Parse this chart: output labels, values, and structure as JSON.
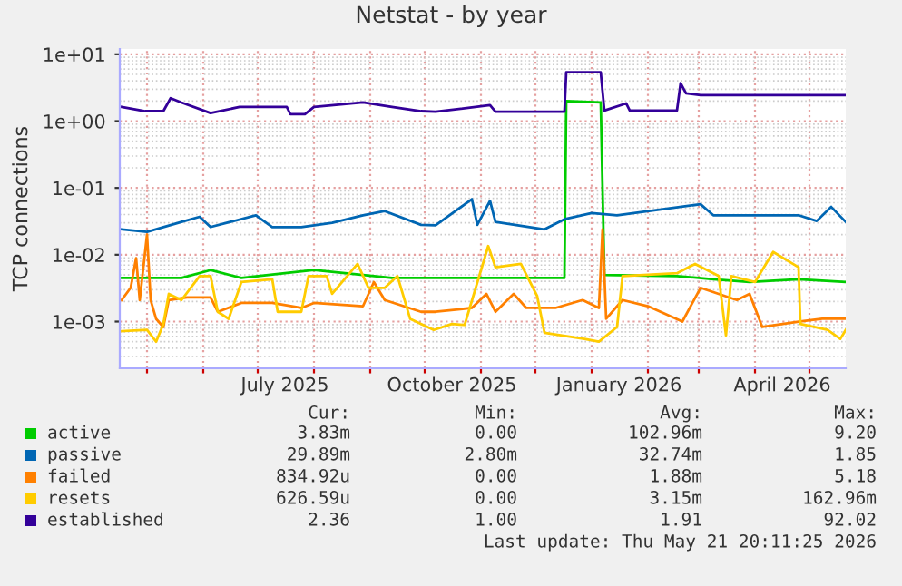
{
  "chart_data": {
    "type": "line",
    "title": "Netstat - by year",
    "ylabel": "TCP connections",
    "log": "y",
    "grid": true,
    "legend": "bottom",
    "xlim": [
      "2025-04-16",
      "2026-05-21"
    ],
    "xticks": [
      {
        "value": "2025-05-01",
        "label": null
      },
      {
        "value": "2025-06-01",
        "label": null
      },
      {
        "value": "2025-07-01",
        "label": null
      },
      {
        "value": "2025-07-16",
        "label": "July 2025"
      },
      {
        "value": "2025-08-01",
        "label": null
      },
      {
        "value": "2025-09-01",
        "label": null
      },
      {
        "value": "2025-10-01",
        "label": null
      },
      {
        "value": "2025-10-16",
        "label": "October 2025"
      },
      {
        "value": "2025-11-01",
        "label": null
      },
      {
        "value": "2025-12-01",
        "label": null
      },
      {
        "value": "2026-01-01",
        "label": null
      },
      {
        "value": "2026-01-16",
        "label": "January 2026"
      },
      {
        "value": "2026-02-01",
        "label": null
      },
      {
        "value": "2026-03-01",
        "label": null
      },
      {
        "value": "2026-04-01",
        "label": null
      },
      {
        "value": "2026-04-16",
        "label": "April 2026"
      },
      {
        "value": "2026-05-01",
        "label": null
      }
    ],
    "ylim": [
      0.0002,
      12
    ],
    "yticks": [
      {
        "value": 0.001,
        "label": "1e-03"
      },
      {
        "value": 0.01,
        "label": "1e-02"
      },
      {
        "value": 0.1,
        "label": "1e-01"
      },
      {
        "value": 1,
        "label": "1e+00"
      },
      {
        "value": 10,
        "label": "1e+01"
      }
    ],
    "series": [
      {
        "name": "active",
        "color": "#00cc00",
        "x": [
          "2025-04-17",
          "2025-05-20",
          "2025-06-05",
          "2025-06-22",
          "2025-08-01",
          "2025-09-13",
          "2025-10-16",
          "2025-11-06",
          "2025-12-17",
          "2025-12-18",
          "2026-01-06",
          "2026-01-08",
          "2026-02-17",
          "2026-03-09",
          "2026-03-29",
          "2026-04-25",
          "2026-05-21"
        ],
        "values": [
          0.0045,
          0.0045,
          0.0059,
          0.0045,
          0.0059,
          0.0045,
          0.0045,
          0.0045,
          0.0045,
          2.0,
          1.9,
          0.005,
          0.0048,
          0.0043,
          0.0039,
          0.0043,
          0.0039
        ]
      },
      {
        "name": "passive",
        "color": "#0066b3",
        "x": [
          "2025-04-17",
          "2025-05-01",
          "2025-05-20",
          "2025-05-30",
          "2025-06-05",
          "2025-06-30",
          "2025-07-09",
          "2025-07-25",
          "2025-08-11",
          "2025-08-28",
          "2025-09-09",
          "2025-09-29",
          "2025-10-07",
          "2025-10-27",
          "2025-10-30",
          "2025-11-06",
          "2025-11-09",
          "2025-12-06",
          "2025-12-17",
          "2026-01-01",
          "2026-01-15",
          "2026-03-02",
          "2026-03-09",
          "2026-04-25",
          "2026-05-05",
          "2026-05-13",
          "2026-05-21"
        ],
        "values": [
          0.024,
          0.022,
          0.031,
          0.037,
          0.026,
          0.039,
          0.026,
          0.026,
          0.03,
          0.039,
          0.045,
          0.028,
          0.0275,
          0.068,
          0.028,
          0.064,
          0.031,
          0.024,
          0.034,
          0.042,
          0.039,
          0.057,
          0.039,
          0.039,
          0.032,
          0.052,
          0.031
        ]
      },
      {
        "name": "failed",
        "color": "#ff8000",
        "x": [
          "2025-04-17",
          "2025-04-22",
          "2025-04-25",
          "2025-04-27",
          "2025-05-01",
          "2025-05-03",
          "2025-05-06",
          "2025-05-10",
          "2025-05-13",
          "2025-05-23",
          "2025-06-05",
          "2025-06-09",
          "2025-06-22",
          "2025-07-09",
          "2025-07-25",
          "2025-08-01",
          "2025-08-28",
          "2025-09-03",
          "2025-09-09",
          "2025-09-29",
          "2025-10-07",
          "2025-10-27",
          "2025-11-04",
          "2025-11-09",
          "2025-11-19",
          "2025-11-26",
          "2025-12-12",
          "2025-12-27",
          "2026-01-05",
          "2026-01-07",
          "2026-01-09",
          "2026-01-18",
          "2026-02-01",
          "2026-02-20",
          "2026-03-02",
          "2026-03-22",
          "2026-03-29",
          "2026-04-05",
          "2026-04-25",
          "2026-05-08",
          "2026-05-21"
        ],
        "values": [
          0.0021,
          0.0032,
          0.0089,
          0.0021,
          0.02,
          0.0021,
          0.0011,
          0.00083,
          0.0021,
          0.0023,
          0.0023,
          0.0014,
          0.0019,
          0.0019,
          0.0016,
          0.0019,
          0.0017,
          0.0039,
          0.0021,
          0.0014,
          0.0014,
          0.0016,
          0.0026,
          0.0014,
          0.0026,
          0.0016,
          0.0016,
          0.0021,
          0.0016,
          0.024,
          0.0011,
          0.0021,
          0.0017,
          0.001,
          0.0032,
          0.0021,
          0.0026,
          0.00083,
          0.001,
          0.0011,
          0.0011
        ]
      },
      {
        "name": "resets",
        "color": "#ffcc00",
        "x": [
          "2025-04-17",
          "2025-05-01",
          "2025-05-06",
          "2025-05-10",
          "2025-05-13",
          "2025-05-20",
          "2025-05-30",
          "2025-06-05",
          "2025-06-09",
          "2025-06-15",
          "2025-06-22",
          "2025-07-09",
          "2025-07-12",
          "2025-07-25",
          "2025-07-29",
          "2025-08-08",
          "2025-08-11",
          "2025-08-25",
          "2025-08-31",
          "2025-09-09",
          "2025-09-16",
          "2025-09-23",
          "2025-10-06",
          "2025-10-16",
          "2025-10-23",
          "2025-11-05",
          "2025-11-09",
          "2025-11-23",
          "2025-12-02",
          "2025-12-06",
          "2025-12-28",
          "2026-01-05",
          "2026-01-15",
          "2026-01-18",
          "2026-02-17",
          "2026-02-27",
          "2026-03-12",
          "2026-03-16",
          "2026-03-19",
          "2026-04-01",
          "2026-04-11",
          "2026-04-25",
          "2026-04-26",
          "2026-05-11",
          "2026-05-18",
          "2026-05-21"
        ],
        "values": [
          0.00072,
          0.00075,
          0.0005,
          0.00092,
          0.0026,
          0.0021,
          0.0048,
          0.0048,
          0.0014,
          0.0011,
          0.0039,
          0.0043,
          0.0014,
          0.0014,
          0.0048,
          0.0048,
          0.0026,
          0.0073,
          0.0032,
          0.0032,
          0.0048,
          0.0011,
          0.00075,
          0.00092,
          0.00089,
          0.0135,
          0.0065,
          0.0073,
          0.0024,
          0.00068,
          0.00055,
          0.0005,
          0.00083,
          0.0048,
          0.0053,
          0.0073,
          0.0048,
          0.00062,
          0.0048,
          0.0039,
          0.011,
          0.0065,
          0.00092,
          0.00075,
          0.00055,
          0.00075
        ]
      },
      {
        "name": "established",
        "color": "#330099",
        "x": [
          "2025-04-17",
          "2025-04-30",
          "2025-05-10",
          "2025-05-14",
          "2025-05-20",
          "2025-06-05",
          "2025-06-21",
          "2025-07-17",
          "2025-07-19",
          "2025-07-27",
          "2025-08-01",
          "2025-08-28",
          "2025-09-13",
          "2025-09-29",
          "2025-10-07",
          "2025-11-06",
          "2025-11-09",
          "2025-12-17",
          "2025-12-18",
          "2026-01-06",
          "2026-01-08",
          "2026-01-20",
          "2026-01-22",
          "2026-02-17",
          "2026-02-19",
          "2026-02-22",
          "2026-03-02",
          "2026-05-21"
        ],
        "values": [
          1.63,
          1.41,
          1.41,
          2.2,
          1.9,
          1.32,
          1.63,
          1.63,
          1.27,
          1.27,
          1.63,
          1.9,
          1.63,
          1.41,
          1.38,
          1.73,
          1.38,
          1.38,
          5.4,
          5.4,
          1.44,
          1.84,
          1.44,
          1.44,
          3.7,
          2.6,
          2.45,
          2.45
        ]
      }
    ],
    "annotations": [
      "Cur:",
      "Min:",
      "Avg:",
      "Max:",
      "3.83m",
      "0.00",
      "102.96m",
      "9.20",
      "29.89m",
      "2.80m",
      "32.74m",
      "1.85",
      "834.92u",
      "0.00",
      "1.88m",
      "5.18",
      "626.59u",
      "0.00",
      "3.15m",
      "162.96m",
      "2.36",
      "1.00",
      "1.91",
      "92.02",
      "Last update: Thu May 21 20:11:25 2026"
    ]
  }
}
